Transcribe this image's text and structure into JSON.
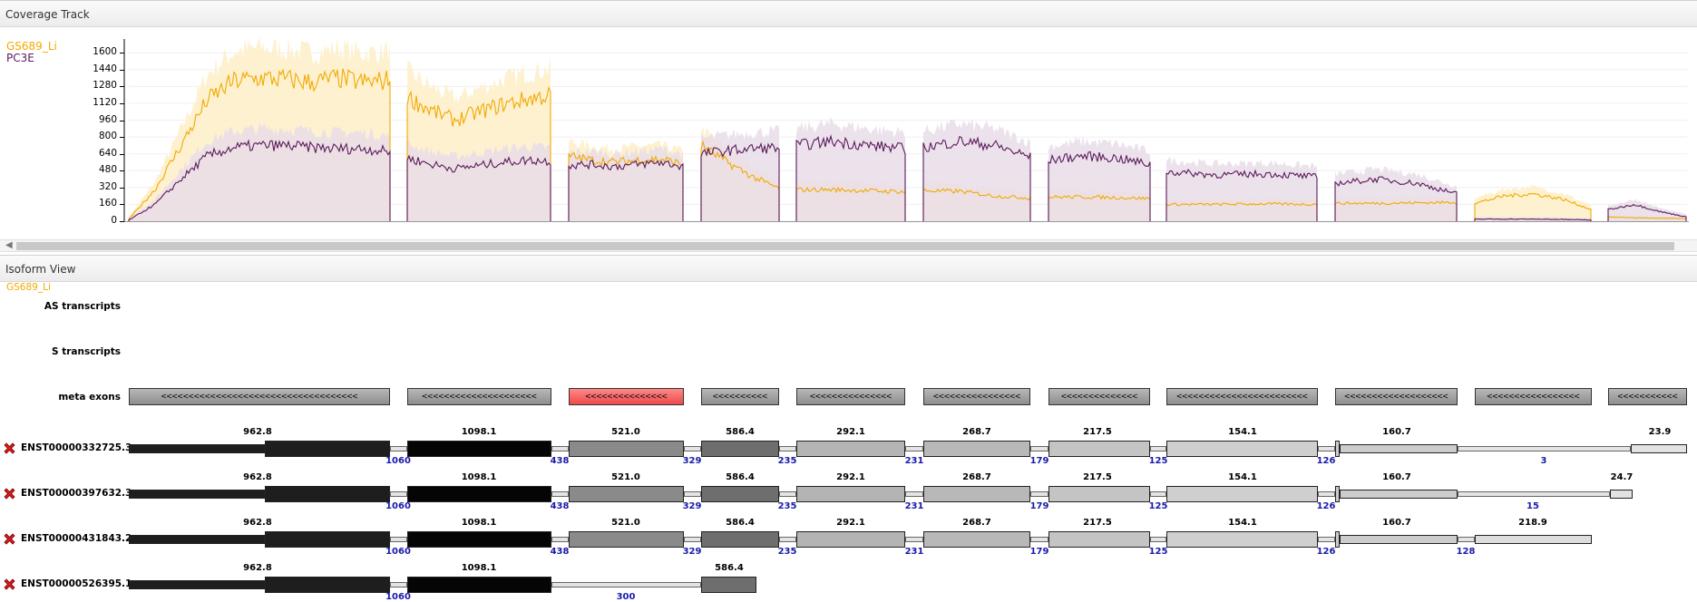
{
  "coverage_panel": {
    "title": "Coverage Track"
  },
  "legend": [
    {
      "name": "GS689_Li",
      "color": "#f2a900"
    },
    {
      "name": "PC3E",
      "color": "#5a1a5a"
    }
  ],
  "colors": {
    "series_a_band": "#fdeec8",
    "series_b_band": "#e9dde9",
    "selected_exon": "#ee4a4a"
  },
  "chart_data": {
    "type": "area",
    "series": [
      {
        "name": "GS689_Li",
        "segments": [
          {
            "exon": 1,
            "values": [
              20,
              300,
              720,
              1150,
              1330,
              1360,
              1350,
              1320,
              1360,
              1320,
              1340
            ]
          },
          {
            "exon": 2,
            "values": [
              1180,
              1050,
              960,
              1040,
              1110,
              1160,
              1200
            ]
          },
          {
            "exon": 3,
            "values": [
              620,
              580,
              560,
              580,
              590,
              540
            ]
          },
          {
            "exon": 4,
            "values": [
              720,
              560,
              420,
              310
            ]
          },
          {
            "exon": 5,
            "values": [
              300,
              300,
              290,
              280
            ]
          },
          {
            "exon": 6,
            "values": [
              290,
              285,
              240,
              220
            ]
          },
          {
            "exon": 7,
            "values": [
              230,
              230,
              225,
              215
            ]
          },
          {
            "exon": 8,
            "values": [
              160,
              160,
              165,
              160
            ]
          },
          {
            "exon": 9,
            "values": [
              170,
              170,
              175,
              180
            ]
          },
          {
            "exon": 10,
            "values": [
              170,
              240,
              260,
              210,
              110
            ]
          },
          {
            "exon": 11,
            "values": [
              40,
              30,
              25
            ]
          }
        ]
      },
      {
        "name": "PC3E",
        "segments": [
          {
            "exon": 1,
            "values": [
              10,
              160,
              400,
              620,
              700,
              720,
              720,
              700,
              690,
              690,
              660
            ]
          },
          {
            "exon": 2,
            "values": [
              600,
              540,
              500,
              530,
              560,
              580,
              570
            ]
          },
          {
            "exon": 3,
            "values": [
              530,
              540,
              520,
              540,
              560,
              520
            ]
          },
          {
            "exon": 4,
            "values": [
              640,
              670,
              690,
              700
            ]
          },
          {
            "exon": 5,
            "values": [
              720,
              760,
              720,
              690
            ]
          },
          {
            "exon": 6,
            "values": [
              700,
              760,
              720,
              610
            ]
          },
          {
            "exon": 7,
            "values": [
              580,
              620,
              600,
              540
            ]
          },
          {
            "exon": 8,
            "values": [
              470,
              440,
              450,
              420
            ]
          },
          {
            "exon": 9,
            "values": [
              360,
              400,
              360,
              260
            ]
          },
          {
            "exon": 10,
            "values": [
              20,
              20,
              18,
              12
            ]
          },
          {
            "exon": 11,
            "values": [
              110,
              160,
              90,
              40
            ]
          }
        ]
      }
    ],
    "ylim": [
      0,
      1680
    ],
    "yticks": [
      "0",
      "160",
      "320",
      "480",
      "640",
      "800",
      "960",
      "1120",
      "1280",
      "1440",
      "1600"
    ],
    "legend_position": "top-left",
    "grid": true
  },
  "isoform_panel": {
    "title": "Isoform View",
    "sample": "GS689_Li",
    "row_labels": {
      "as": "AS transcripts",
      "s": "S transcripts",
      "meta": "meta exons"
    }
  },
  "meta_exons": [
    {
      "label": "<<<<<<<<<<<<<<<<<<<<<<<<<<<<<<<<<<<<",
      "selected": false
    },
    {
      "label": "<<<<<<<<<<<<<<<<<<<<<",
      "selected": false
    },
    {
      "label": "<<<<<<<<<<<<<<<",
      "selected": true
    },
    {
      "label": "<<<<<<<<<<",
      "selected": false
    },
    {
      "label": "<<<<<<<<<<<<<<<",
      "selected": false
    },
    {
      "label": "<<<<<<<<<<<<<<<<",
      "selected": false
    },
    {
      "label": "<<<<<<<<<<<<<<",
      "selected": false
    },
    {
      "label": "<<<<<<<<<<<<<<<<<<<<<<<<",
      "selected": false
    },
    {
      "label": "<<<<<<<<<<<<<<<<<<<",
      "selected": false
    },
    {
      "label": "<<<<<<<<<<<<<<<<<",
      "selected": false
    },
    {
      "label": "<<<<<<<<<<<",
      "selected": false
    }
  ],
  "transcripts": [
    {
      "id": "ENST00000332725.3",
      "exon_values": [
        "962.8",
        "1098.1",
        "521.0",
        "586.4",
        "292.1",
        "268.7",
        "217.5",
        "154.1",
        "160.7",
        "23.9"
      ],
      "junction_values": [
        "1060",
        "438",
        "329",
        "235",
        "231",
        "179",
        "125",
        "126",
        "3"
      ]
    },
    {
      "id": "ENST00000397632.3",
      "exon_values": [
        "962.8",
        "1098.1",
        "521.0",
        "586.4",
        "292.1",
        "268.7",
        "217.5",
        "154.1",
        "160.7",
        "24.7"
      ],
      "junction_values": [
        "1060",
        "438",
        "329",
        "235",
        "231",
        "179",
        "125",
        "126",
        "15"
      ]
    },
    {
      "id": "ENST00000431843.2",
      "exon_values": [
        "962.8",
        "1098.1",
        "521.0",
        "586.4",
        "292.1",
        "268.7",
        "217.5",
        "154.1",
        "160.7",
        "218.9"
      ],
      "junction_values": [
        "1060",
        "438",
        "329",
        "235",
        "231",
        "179",
        "125",
        "126",
        "128"
      ]
    },
    {
      "id": "ENST00000526395.1",
      "exon_values": [
        "962.8",
        "1098.1",
        "586.4"
      ],
      "junction_values": [
        "1060",
        "300"
      ]
    }
  ]
}
